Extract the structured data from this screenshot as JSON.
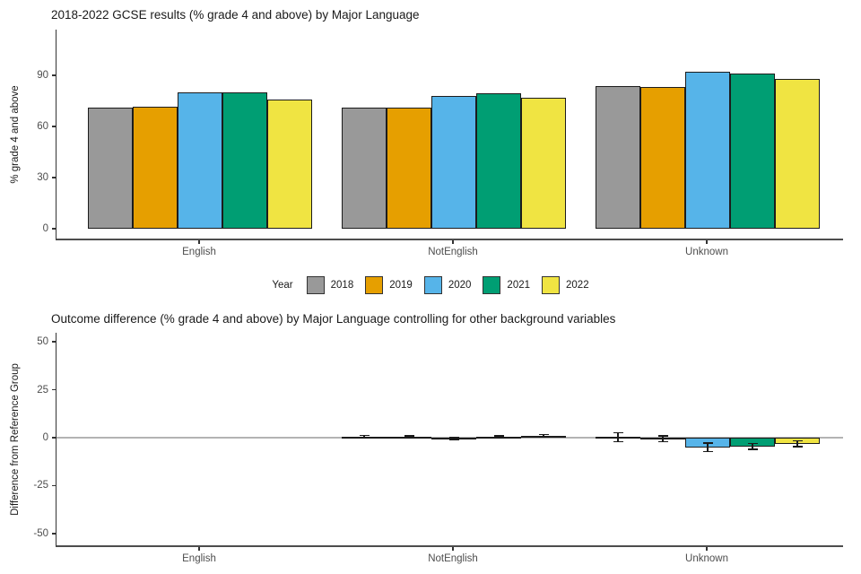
{
  "style": {
    "background": "#ffffff",
    "axis_line_color": "#333333",
    "axis_baseline_color": "#4d4d4d",
    "tick_label_color": "#4d4d4d",
    "text_color": "#1a1a1a",
    "zero_line_color": "#b3b3b3",
    "bar_border_color": "#1c1c1c"
  },
  "chart_data": [
    {
      "type": "bar",
      "grouped": true,
      "title": "2018-2022 GCSE results (% grade 4 and above) by Major Language",
      "xlabel": "",
      "ylabel": "% grade 4 and above",
      "categories": [
        "English",
        "NotEnglish",
        "Unknown"
      ],
      "yticks": [
        90,
        60,
        30,
        0
      ],
      "ylim": [
        0,
        117
      ],
      "grid": false,
      "legend": {
        "title": "Year",
        "position": "bottom"
      },
      "series": [
        {
          "name": "2018",
          "color": "#999999",
          "values": [
            71.1,
            70.8,
            83.8
          ]
        },
        {
          "name": "2019",
          "color": "#E69F00",
          "values": [
            71.6,
            71.1,
            83.4
          ]
        },
        {
          "name": "2020",
          "color": "#56B4E9",
          "values": [
            80.2,
            78.1,
            92.1
          ]
        },
        {
          "name": "2021",
          "color": "#009E73",
          "values": [
            80.1,
            79.5,
            91.2
          ]
        },
        {
          "name": "2022",
          "color": "#F0E442",
          "values": [
            75.9,
            76.8,
            87.9
          ]
        }
      ]
    },
    {
      "type": "bar",
      "grouped": true,
      "error_bars": true,
      "zero_line": true,
      "title": "Outcome difference (% grade 4 and above) by Major Language controlling for other background variables",
      "xlabel": "",
      "ylabel": "Difference from Reference Group",
      "categories": [
        "English",
        "NotEnglish",
        "Unknown"
      ],
      "reference_group": "English",
      "yticks": [
        50,
        25,
        0,
        -25,
        -50
      ],
      "ylim": [
        -56,
        56
      ],
      "grid": false,
      "series": [
        {
          "name": "2018",
          "color": "#999999",
          "values": [
            null,
            0.6,
            0.3
          ],
          "ci": [
            null,
            0.6,
            2.3
          ]
        },
        {
          "name": "2019",
          "color": "#E69F00",
          "values": [
            null,
            0.4,
            -0.6
          ],
          "ci": [
            null,
            0.6,
            1.6
          ]
        },
        {
          "name": "2020",
          "color": "#56B4E9",
          "values": [
            null,
            -0.4,
            -5.0
          ],
          "ci": [
            null,
            0.6,
            2.3
          ]
        },
        {
          "name": "2021",
          "color": "#009E73",
          "values": [
            null,
            0.3,
            -4.6
          ],
          "ci": [
            null,
            0.6,
            1.5
          ]
        },
        {
          "name": "2022",
          "color": "#F0E442",
          "values": [
            null,
            1.0,
            -3.2
          ],
          "ci": [
            null,
            0.6,
            1.5
          ]
        }
      ]
    }
  ]
}
